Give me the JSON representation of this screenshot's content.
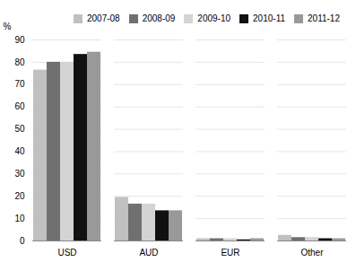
{
  "chart_data": {
    "type": "bar",
    "categories": [
      "USD",
      "AUD",
      "EUR",
      "Other"
    ],
    "series": [
      {
        "name": "2007-08",
        "color": "#c0c0c0",
        "values": [
          76.5,
          19.5,
          1.0,
          2.5
        ]
      },
      {
        "name": "2008-09",
        "color": "#707070",
        "values": [
          80.0,
          16.5,
          1.0,
          1.5
        ]
      },
      {
        "name": "2009-10",
        "color": "#d4d4d4",
        "values": [
          80.0,
          16.5,
          1.0,
          1.5
        ]
      },
      {
        "name": "2010-11",
        "color": "#111111",
        "values": [
          83.5,
          13.5,
          0.5,
          1.0
        ]
      },
      {
        "name": "2011-12",
        "color": "#999999",
        "values": [
          84.5,
          13.5,
          1.0,
          1.0
        ]
      }
    ],
    "ylabel": "%",
    "ylim": [
      0,
      90
    ],
    "yticks": [
      0,
      10,
      20,
      30,
      40,
      50,
      60,
      70,
      80,
      90
    ],
    "grid": true,
    "legend": "upper right"
  }
}
